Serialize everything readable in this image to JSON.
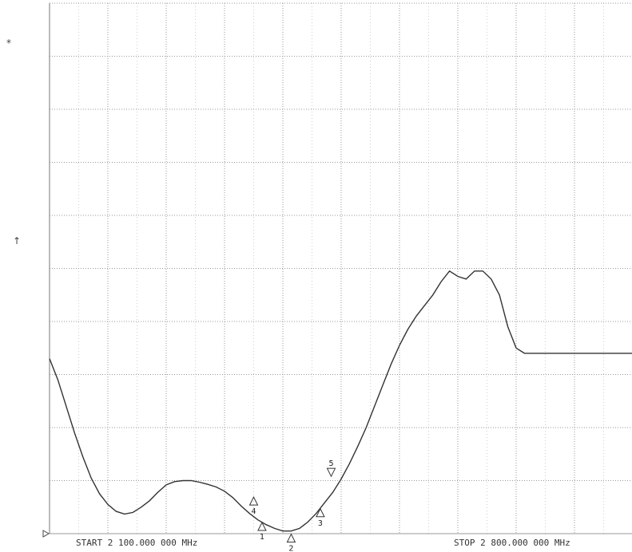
{
  "analyzer": {
    "start_label": "START 2 100.000 000 MHz",
    "stop_label": "STOP 2 800.000 000 MHz",
    "left_symbols": {
      "top": "*",
      "reference": "↑"
    },
    "colors": {
      "grid": "#9a9a9a",
      "trace": "#333333",
      "background": "#ffffff"
    }
  },
  "chart_data": {
    "type": "line",
    "x_unit": "MHz",
    "xlim": [
      2100,
      2800
    ],
    "ylim": [
      0,
      10
    ],
    "grid": true,
    "grid_divisions": {
      "x": 10,
      "y": 10
    },
    "series": [
      {
        "x": [
          2100,
          2110,
          2120,
          2130,
          2140,
          2150,
          2160,
          2170,
          2180,
          2190,
          2200,
          2210,
          2220,
          2230,
          2240,
          2250,
          2260,
          2270,
          2280,
          2290,
          2300,
          2310,
          2320,
          2330,
          2340,
          2350,
          2360,
          2370,
          2380,
          2390,
          2400,
          2410,
          2420,
          2430,
          2440,
          2450,
          2460,
          2470,
          2480,
          2490,
          2500,
          2510,
          2520,
          2530,
          2540,
          2550,
          2560,
          2570,
          2580,
          2590,
          2600,
          2610,
          2620,
          2630,
          2640,
          2650,
          2660,
          2670,
          2680,
          2690,
          2700,
          2710,
          2720,
          2730,
          2740,
          2750,
          2760,
          2770,
          2780,
          2790,
          2800
        ],
        "values": [
          3.3,
          2.9,
          2.4,
          1.9,
          1.45,
          1.05,
          0.75,
          0.55,
          0.42,
          0.37,
          0.4,
          0.5,
          0.62,
          0.78,
          0.92,
          0.98,
          1.0,
          1.0,
          0.97,
          0.93,
          0.88,
          0.8,
          0.68,
          0.52,
          0.38,
          0.26,
          0.17,
          0.1,
          0.05,
          0.05,
          0.1,
          0.22,
          0.38,
          0.58,
          0.78,
          1.03,
          1.32,
          1.65,
          2.0,
          2.4,
          2.8,
          3.2,
          3.55,
          3.85,
          4.1,
          4.3,
          4.5,
          4.75,
          4.95,
          4.85,
          4.8,
          4.95,
          4.95,
          4.8,
          4.5,
          3.9,
          3.5,
          3.4,
          3.4,
          3.4,
          3.4,
          3.4,
          3.4,
          3.4,
          3.4,
          3.4,
          3.4,
          3.4,
          3.4,
          3.4,
          3.4
        ]
      }
    ],
    "markers": [
      {
        "label": "1",
        "x": 2355,
        "y": 0.24,
        "label_pos": "below"
      },
      {
        "label": "2",
        "x": 2390,
        "y": 0.02,
        "label_pos": "below"
      },
      {
        "label": "3",
        "x": 2425,
        "y": 0.5,
        "label_pos": "below"
      },
      {
        "label": "4",
        "x": 2345,
        "y": 0.72,
        "label_pos": "below"
      },
      {
        "label": "5",
        "x": 2438,
        "y": 1.05,
        "label_pos": "above"
      }
    ]
  }
}
